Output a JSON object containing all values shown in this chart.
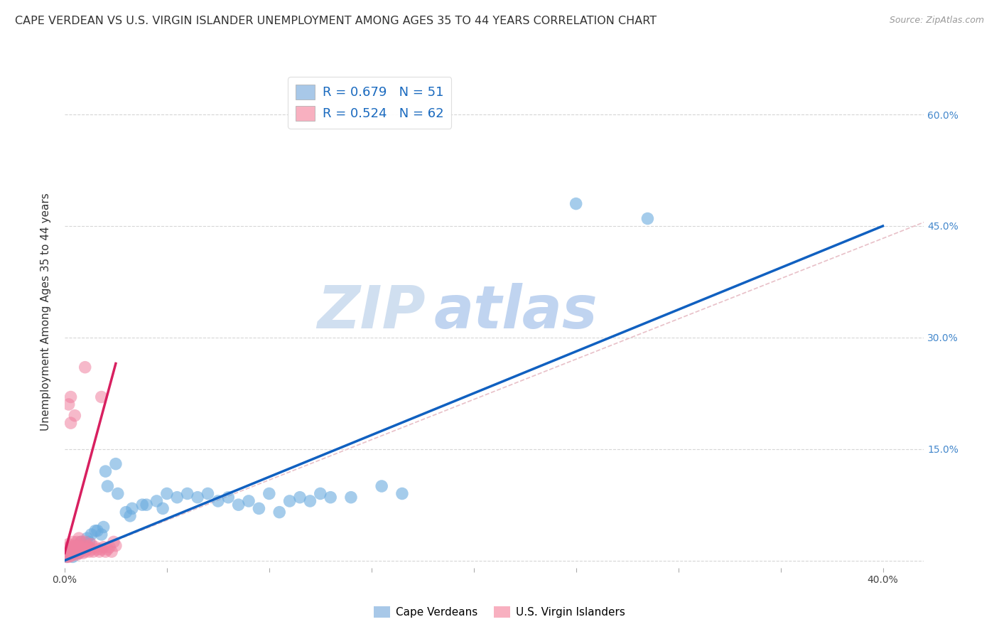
{
  "title": "CAPE VERDEAN VS U.S. VIRGIN ISLANDER UNEMPLOYMENT AMONG AGES 35 TO 44 YEARS CORRELATION CHART",
  "source": "Source: ZipAtlas.com",
  "ylabel": "Unemployment Among Ages 35 to 44 years",
  "xlim": [
    0.0,
    0.42
  ],
  "ylim": [
    -0.01,
    0.68
  ],
  "xtick_vals": [
    0.0,
    0.05,
    0.1,
    0.15,
    0.2,
    0.25,
    0.3,
    0.35,
    0.4
  ],
  "xtick_labels": [
    "0.0%",
    "",
    "",
    "",
    "",
    "",
    "",
    "",
    "40.0%"
  ],
  "ytick_vals": [
    0.0,
    0.15,
    0.3,
    0.45,
    0.6
  ],
  "ytick_labels_right": [
    "",
    "15.0%",
    "30.0%",
    "45.0%",
    "60.0%"
  ],
  "legend_label1": "R = 0.679   N = 51",
  "legend_label2": "R = 0.524   N = 62",
  "legend_color1": "#a8c8e8",
  "legend_color2": "#f8b0c0",
  "blue_color": "#6aabdf",
  "pink_color": "#f080a0",
  "trend_blue": "#1060c0",
  "trend_pink": "#d82060",
  "ref_line_color": "#e8c0c8",
  "watermark_zip_color": "#d0dff0",
  "watermark_atlas_color": "#c0d4f0",
  "grid_color": "#cccccc",
  "background_color": "#ffffff",
  "title_fontsize": 11.5,
  "axis_label_fontsize": 11,
  "tick_fontsize": 10,
  "legend_fontsize": 13,
  "source_fontsize": 9,
  "legend_text_color": "#1a6abf",
  "ytick_right_color": "#4488cc",
  "blue_scatter": [
    [
      0.001,
      0.005
    ],
    [
      0.002,
      0.008
    ],
    [
      0.003,
      0.01
    ],
    [
      0.004,
      0.005
    ],
    [
      0.005,
      0.015
    ],
    [
      0.006,
      0.02
    ],
    [
      0.007,
      0.01
    ],
    [
      0.008,
      0.025
    ],
    [
      0.009,
      0.015
    ],
    [
      0.01,
      0.02
    ],
    [
      0.011,
      0.03
    ],
    [
      0.012,
      0.025
    ],
    [
      0.013,
      0.035
    ],
    [
      0.015,
      0.04
    ],
    [
      0.016,
      0.04
    ],
    [
      0.018,
      0.035
    ],
    [
      0.019,
      0.045
    ],
    [
      0.02,
      0.12
    ],
    [
      0.021,
      0.1
    ],
    [
      0.025,
      0.13
    ],
    [
      0.026,
      0.09
    ],
    [
      0.03,
      0.065
    ],
    [
      0.032,
      0.06
    ],
    [
      0.033,
      0.07
    ],
    [
      0.038,
      0.075
    ],
    [
      0.04,
      0.075
    ],
    [
      0.045,
      0.08
    ],
    [
      0.048,
      0.07
    ],
    [
      0.05,
      0.09
    ],
    [
      0.055,
      0.085
    ],
    [
      0.06,
      0.09
    ],
    [
      0.065,
      0.085
    ],
    [
      0.07,
      0.09
    ],
    [
      0.075,
      0.08
    ],
    [
      0.08,
      0.085
    ],
    [
      0.085,
      0.075
    ],
    [
      0.09,
      0.08
    ],
    [
      0.095,
      0.07
    ],
    [
      0.1,
      0.09
    ],
    [
      0.105,
      0.065
    ],
    [
      0.11,
      0.08
    ],
    [
      0.115,
      0.085
    ],
    [
      0.12,
      0.08
    ],
    [
      0.125,
      0.09
    ],
    [
      0.13,
      0.085
    ],
    [
      0.14,
      0.085
    ],
    [
      0.155,
      0.1
    ],
    [
      0.165,
      0.09
    ],
    [
      0.25,
      0.48
    ],
    [
      0.285,
      0.46
    ]
  ],
  "pink_scatter": [
    [
      0.001,
      0.005
    ],
    [
      0.001,
      0.008
    ],
    [
      0.001,
      0.01
    ],
    [
      0.001,
      0.015
    ],
    [
      0.002,
      0.005
    ],
    [
      0.002,
      0.008
    ],
    [
      0.002,
      0.012
    ],
    [
      0.002,
      0.018
    ],
    [
      0.002,
      0.022
    ],
    [
      0.003,
      0.006
    ],
    [
      0.003,
      0.01
    ],
    [
      0.003,
      0.015
    ],
    [
      0.003,
      0.02
    ],
    [
      0.004,
      0.008
    ],
    [
      0.004,
      0.012
    ],
    [
      0.004,
      0.018
    ],
    [
      0.004,
      0.025
    ],
    [
      0.005,
      0.01
    ],
    [
      0.005,
      0.015
    ],
    [
      0.005,
      0.02
    ],
    [
      0.006,
      0.008
    ],
    [
      0.006,
      0.012
    ],
    [
      0.006,
      0.018
    ],
    [
      0.006,
      0.025
    ],
    [
      0.007,
      0.01
    ],
    [
      0.007,
      0.015
    ],
    [
      0.007,
      0.02
    ],
    [
      0.007,
      0.03
    ],
    [
      0.008,
      0.012
    ],
    [
      0.008,
      0.018
    ],
    [
      0.008,
      0.025
    ],
    [
      0.009,
      0.01
    ],
    [
      0.009,
      0.015
    ],
    [
      0.01,
      0.012
    ],
    [
      0.01,
      0.018
    ],
    [
      0.01,
      0.025
    ],
    [
      0.011,
      0.015
    ],
    [
      0.011,
      0.02
    ],
    [
      0.012,
      0.012
    ],
    [
      0.012,
      0.018
    ],
    [
      0.013,
      0.015
    ],
    [
      0.013,
      0.022
    ],
    [
      0.014,
      0.012
    ],
    [
      0.015,
      0.018
    ],
    [
      0.016,
      0.015
    ],
    [
      0.017,
      0.012
    ],
    [
      0.018,
      0.015
    ],
    [
      0.019,
      0.018
    ],
    [
      0.02,
      0.012
    ],
    [
      0.021,
      0.015
    ],
    [
      0.022,
      0.018
    ],
    [
      0.023,
      0.012
    ],
    [
      0.003,
      0.22
    ],
    [
      0.003,
      0.185
    ],
    [
      0.01,
      0.26
    ],
    [
      0.018,
      0.22
    ],
    [
      0.002,
      0.21
    ],
    [
      0.005,
      0.195
    ],
    [
      0.024,
      0.025
    ],
    [
      0.025,
      0.02
    ]
  ],
  "blue_line": [
    [
      0.0,
      0.0
    ],
    [
      0.4,
      0.45
    ]
  ],
  "pink_line": [
    [
      0.0,
      0.01
    ],
    [
      0.025,
      0.265
    ]
  ],
  "ref_line": [
    [
      0.0,
      0.0
    ],
    [
      0.6,
      0.65
    ]
  ]
}
